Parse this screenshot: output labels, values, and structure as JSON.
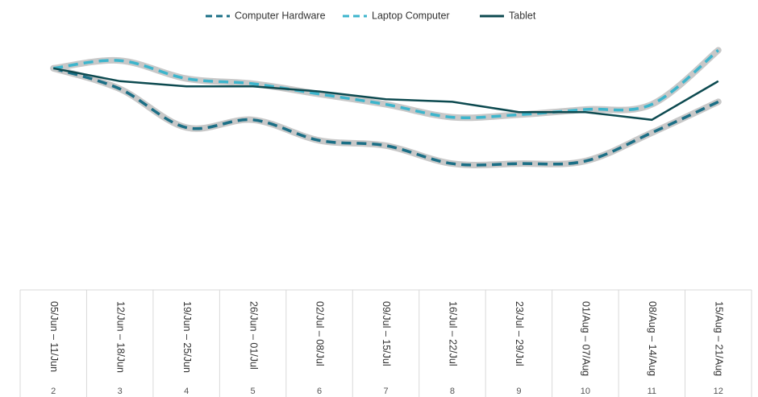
{
  "chart_data": {
    "type": "line",
    "categories": [
      "05/Jun – 11/Jun",
      "12/Jun – 18/Jun",
      "19/Jun – 25/Jun",
      "26/Jun – 01/Jul",
      "02/Jul – 08/Jul",
      "09/Jul – 15/Jul",
      "16/Jul – 22/Jul",
      "23/Jul – 29/Jul",
      "01/Aug – 07/Aug",
      "08/Aug – 14/Aug",
      "15/Aug – 21/Aug"
    ],
    "category_numbers": [
      "2",
      "3",
      "4",
      "5",
      "6",
      "7",
      "8",
      "9",
      "10",
      "11",
      "12"
    ],
    "ylim": [
      0,
      100
    ],
    "legend": "top",
    "series": [
      {
        "name": "Computer Hardware",
        "color": "#1b6f86",
        "style": "dashed",
        "values": [
          86,
          78,
          63,
          66,
          58,
          56,
          49,
          49,
          50,
          61,
          73
        ]
      },
      {
        "name": "Laptop Computer",
        "color": "#3db5cc",
        "style": "dashed",
        "values": [
          86,
          89,
          82,
          80,
          76,
          72,
          67,
          68,
          70,
          72,
          93
        ]
      },
      {
        "name": "Tablet",
        "color": "#0d4a50",
        "style": "solid",
        "values": [
          86,
          81,
          79,
          79,
          77,
          74,
          73,
          69,
          69,
          66,
          81
        ]
      }
    ]
  }
}
